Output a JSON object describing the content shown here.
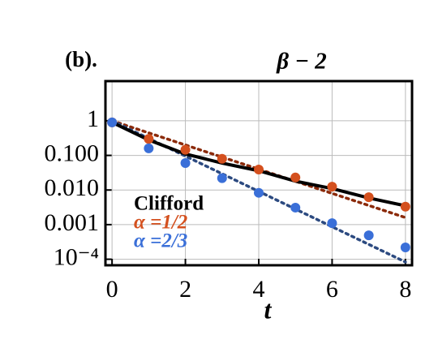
{
  "chart_data": {
    "type": "line",
    "panel_label": "(b).",
    "title": "β − 2",
    "xlabel": "t",
    "x": [
      0,
      1,
      2,
      3,
      4,
      5,
      6,
      7,
      8
    ],
    "series": [
      {
        "name": "Clifford",
        "color": "#000000",
        "style": "solid",
        "values": [
          0.9,
          0.28,
          0.11,
          0.06,
          0.036,
          0.018,
          0.011,
          0.0059,
          0.0035
        ]
      },
      {
        "name": "α =1/2",
        "color": "#d4501e",
        "style": "dots",
        "values": [
          0.9,
          0.3,
          0.145,
          0.08,
          0.039,
          0.023,
          0.0125,
          0.0062,
          0.0033
        ],
        "fit": {
          "color": "#8b2a0a",
          "x": [
            0,
            8
          ],
          "values": [
            1,
            0.0016
          ]
        }
      },
      {
        "name": "α =2/3",
        "color": "#3a6fd8",
        "style": "dots",
        "values": [
          0.9,
          0.16,
          0.06,
          0.022,
          0.0083,
          0.0031,
          0.0011,
          0.00049,
          0.00022
        ],
        "fit": {
          "color": "#2c4a80",
          "x": [
            0,
            8
          ],
          "values": [
            1,
            8.3e-05
          ]
        }
      }
    ],
    "xlim": [
      -0.18,
      8.18
    ],
    "xticks": [
      0,
      2,
      4,
      6,
      8
    ],
    "ylim": [
      6.7e-05,
      14
    ],
    "log_y": true,
    "yticks": [
      1,
      {
        "value": 0.1,
        "label": "0.100"
      },
      {
        "value": 0.01,
        "label": "0.010"
      },
      {
        "value": 0.001,
        "label": "0.001"
      },
      {
        "value": 0.0001,
        "label": "10⁻⁴"
      }
    ],
    "grid": true
  }
}
